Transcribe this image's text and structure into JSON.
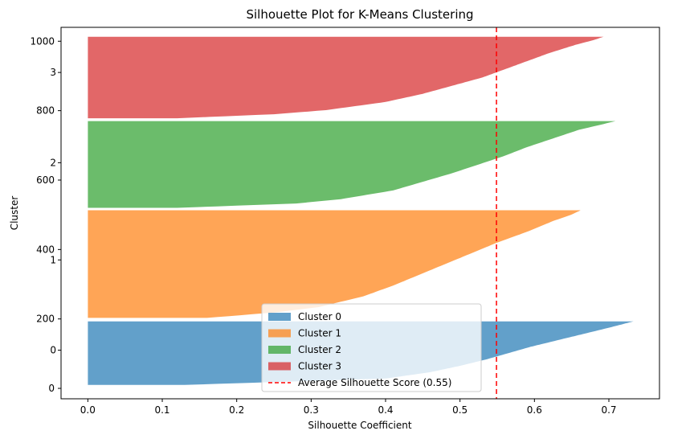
{
  "chart_data": {
    "type": "area",
    "title": "Silhouette Plot for K-Means Clustering",
    "xlabel": "Silhouette Coefficient",
    "ylabel": "Cluster",
    "xlim": [
      -0.036,
      0.768
    ],
    "ylim": [
      -30,
      1040
    ],
    "x_ticks": [
      0.0,
      0.1,
      0.2,
      0.3,
      0.4,
      0.5,
      0.6,
      0.7
    ],
    "x_tick_labels": [
      "0.0",
      "0.1",
      "0.2",
      "0.3",
      "0.4",
      "0.5",
      "0.6",
      "0.7"
    ],
    "y_ticks": [
      0,
      200,
      400,
      600,
      800,
      1000
    ],
    "y_tick_labels": [
      "0",
      "200",
      "400",
      "600",
      "800",
      "1000"
    ],
    "grid": false,
    "legend_position": "bottom-center",
    "series": [
      {
        "name": "Cluster 0",
        "label": "0",
        "label_y": 110,
        "y_start": 10,
        "y_end": 193,
        "color": "#1f77b4",
        "profile": [
          [
            0.0,
            0.13
          ],
          [
            0.1,
            0.4
          ],
          [
            0.2,
            0.46
          ],
          [
            0.3,
            0.5
          ],
          [
            0.4,
            0.535
          ],
          [
            0.5,
            0.565
          ],
          [
            0.6,
            0.595
          ],
          [
            0.7,
            0.63
          ],
          [
            0.8,
            0.665
          ],
          [
            0.9,
            0.7
          ],
          [
            0.96,
            0.72
          ],
          [
            1.0,
            0.733
          ]
        ]
      },
      {
        "name": "Cluster 1",
        "label": "1",
        "label_y": 370,
        "y_start": 203,
        "y_end": 513,
        "color": "#ff7f0e",
        "profile": [
          [
            0.0,
            0.16
          ],
          [
            0.05,
            0.25
          ],
          [
            0.1,
            0.31
          ],
          [
            0.2,
            0.37
          ],
          [
            0.3,
            0.41
          ],
          [
            0.4,
            0.445
          ],
          [
            0.5,
            0.48
          ],
          [
            0.6,
            0.515
          ],
          [
            0.7,
            0.55
          ],
          [
            0.8,
            0.59
          ],
          [
            0.9,
            0.625
          ],
          [
            0.96,
            0.65
          ],
          [
            1.0,
            0.662
          ]
        ]
      },
      {
        "name": "Cluster 2",
        "label": "2",
        "label_y": 650,
        "y_start": 520,
        "y_end": 770,
        "color": "#2ca02c",
        "profile": [
          [
            0.0,
            0.12
          ],
          [
            0.05,
            0.28
          ],
          [
            0.1,
            0.34
          ],
          [
            0.2,
            0.41
          ],
          [
            0.3,
            0.45
          ],
          [
            0.4,
            0.49
          ],
          [
            0.5,
            0.525
          ],
          [
            0.6,
            0.56
          ],
          [
            0.7,
            0.59
          ],
          [
            0.8,
            0.625
          ],
          [
            0.9,
            0.66
          ],
          [
            0.96,
            0.69
          ],
          [
            1.0,
            0.709
          ]
        ]
      },
      {
        "name": "Cluster 3",
        "label": "3",
        "label_y": 910,
        "y_start": 778,
        "y_end": 1013,
        "color": "#d62728",
        "profile": [
          [
            0.0,
            0.12
          ],
          [
            0.05,
            0.25
          ],
          [
            0.1,
            0.32
          ],
          [
            0.2,
            0.4
          ],
          [
            0.3,
            0.45
          ],
          [
            0.4,
            0.49
          ],
          [
            0.5,
            0.53
          ],
          [
            0.6,
            0.56
          ],
          [
            0.7,
            0.59
          ],
          [
            0.8,
            0.62
          ],
          [
            0.9,
            0.655
          ],
          [
            0.96,
            0.68
          ],
          [
            1.0,
            0.693
          ]
        ]
      }
    ],
    "average_line": {
      "label": "Average Silhouette Score (0.55)",
      "value": 0.549,
      "color": "#ff0000"
    }
  }
}
